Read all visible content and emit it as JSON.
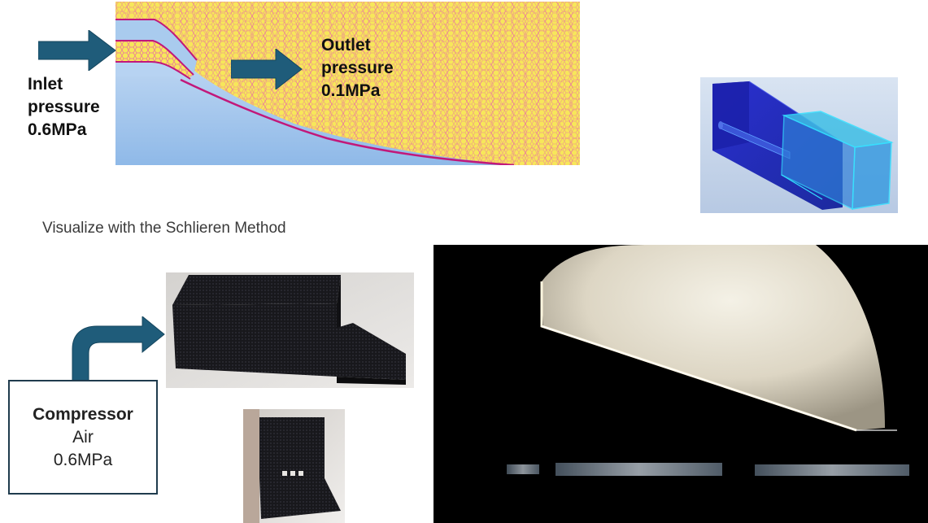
{
  "inlet": {
    "line1": "Inlet",
    "line2": "pressure",
    "line3": "0.6MPa"
  },
  "outlet": {
    "line1": "Outlet",
    "line2": "pressure",
    "line3": "0.1MPa"
  },
  "caption": "Visualize with the Schlieren Method",
  "compressor": {
    "title": "Compressor",
    "medium": "Air",
    "pressure": "0.6MPa"
  },
  "colors": {
    "arrow": "#1f5c7a",
    "mesh_fill": "#f7e75a",
    "mesh_edge": "#e0409a",
    "flow_blue": "#a9cbee",
    "cad_blue": "#2233cc",
    "cad_cyan": "#33e0ff",
    "box_border": "#1f3b4d"
  },
  "icons": {
    "inlet_arrow": "right-arrow-icon",
    "outlet_arrow": "right-arrow-icon",
    "compressor_arrow": "bent-up-right-arrow-icon"
  }
}
